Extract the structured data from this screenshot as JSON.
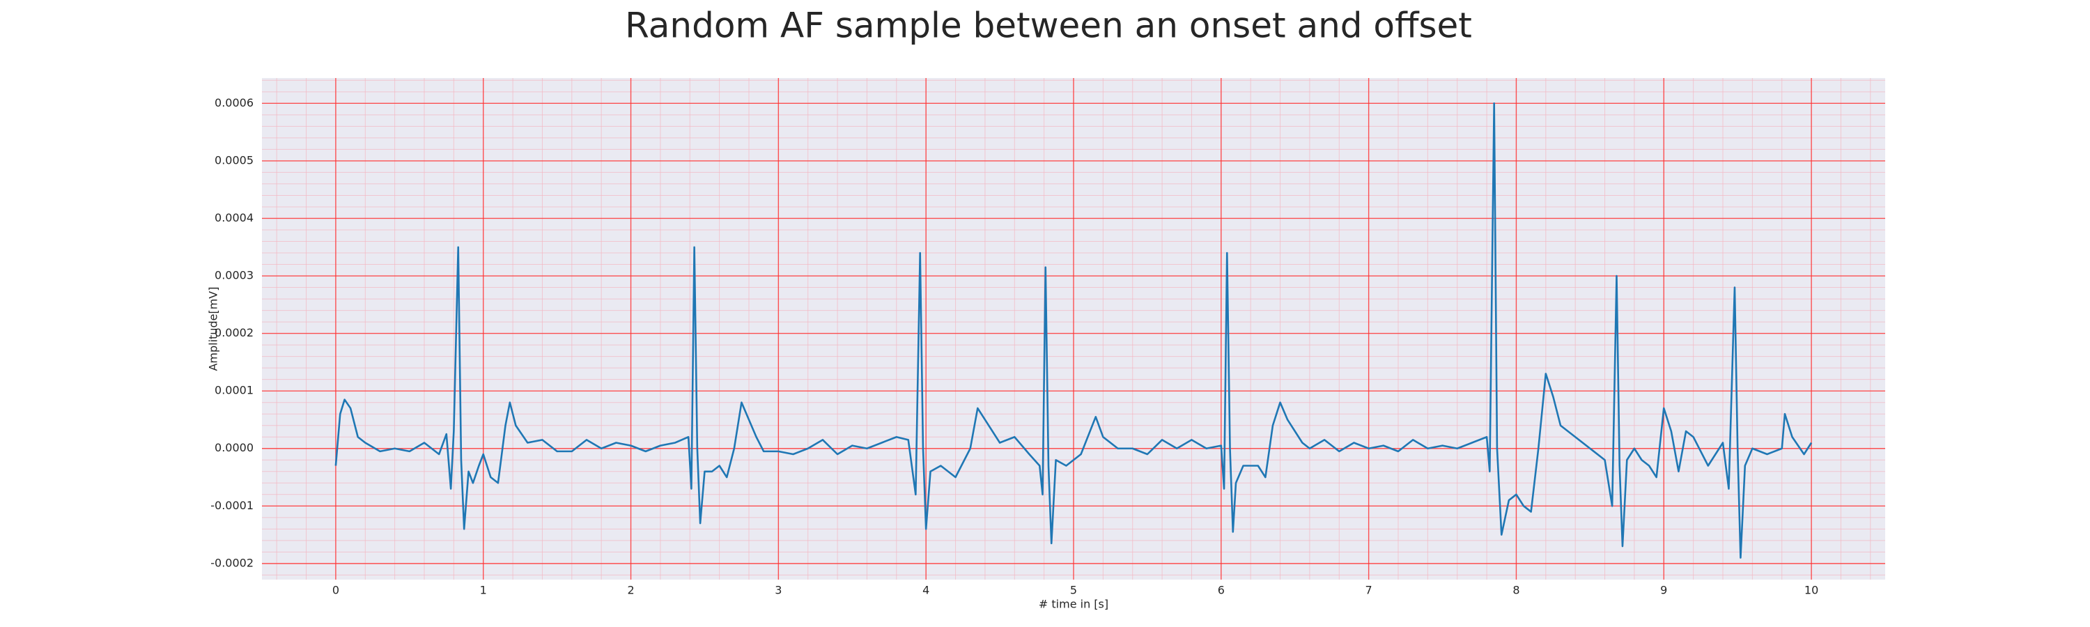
{
  "chart_data": {
    "type": "line",
    "title": "Random AF sample between an onset and offset",
    "xlabel": "# time in [s]",
    "ylabel": "Amplitude[mV]",
    "color": "#1f77b4",
    "grid": true,
    "minor_grid": true,
    "xlim": [
      -0.5,
      10.5
    ],
    "ylim": [
      -0.000228,
      0.000644
    ],
    "xticks": [
      0,
      1,
      2,
      3,
      4,
      5,
      6,
      7,
      8,
      9,
      10
    ],
    "yticks": [
      {
        "value": -0.0002,
        "label": "-0.0002"
      },
      {
        "value": -0.0001,
        "label": "-0.0001"
      },
      {
        "value": 0,
        "label": "0.0000"
      },
      {
        "value": 0.0001,
        "label": "0.0001"
      },
      {
        "value": 0.0002,
        "label": "0.0002"
      },
      {
        "value": 0.0003,
        "label": "0.0003"
      },
      {
        "value": 0.0004,
        "label": "0.0004"
      },
      {
        "value": 0.0005,
        "label": "0.0005"
      },
      {
        "value": 0.0006,
        "label": "0.0006"
      }
    ],
    "x": [
      0,
      0.03,
      0.06,
      0.1,
      0.15,
      0.2,
      0.3,
      0.4,
      0.5,
      0.6,
      0.7,
      0.75,
      0.78,
      0.8,
      0.83,
      0.85,
      0.87,
      0.9,
      0.93,
      0.97,
      1.0,
      1.05,
      1.1,
      1.15,
      1.18,
      1.22,
      1.3,
      1.4,
      1.5,
      1.6,
      1.7,
      1.8,
      1.9,
      2.0,
      2.1,
      2.2,
      2.3,
      2.39,
      2.41,
      2.43,
      2.45,
      2.47,
      2.5,
      2.55,
      2.6,
      2.65,
      2.7,
      2.75,
      2.8,
      2.85,
      2.9,
      3.0,
      3.1,
      3.2,
      3.3,
      3.4,
      3.5,
      3.6,
      3.7,
      3.8,
      3.88,
      3.93,
      3.96,
      3.98,
      4.0,
      4.03,
      4.1,
      4.2,
      4.3,
      4.35,
      4.4,
      4.5,
      4.6,
      4.7,
      4.77,
      4.79,
      4.81,
      4.83,
      4.85,
      4.88,
      4.95,
      5.05,
      5.15,
      5.2,
      5.3,
      5.4,
      5.5,
      5.6,
      5.7,
      5.8,
      5.9,
      6.0,
      6.02,
      6.04,
      6.06,
      6.08,
      6.1,
      6.15,
      6.25,
      6.3,
      6.35,
      6.4,
      6.45,
      6.55,
      6.6,
      6.7,
      6.8,
      6.9,
      7.0,
      7.1,
      7.2,
      7.3,
      7.4,
      7.5,
      7.6,
      7.7,
      7.8,
      7.82,
      7.85,
      7.87,
      7.9,
      7.95,
      8.0,
      8.05,
      8.1,
      8.15,
      8.2,
      8.25,
      8.3,
      8.4,
      8.5,
      8.6,
      8.65,
      8.68,
      8.7,
      8.72,
      8.75,
      8.8,
      8.85,
      8.9,
      8.95,
      9.0,
      9.05,
      9.1,
      9.15,
      9.2,
      9.3,
      9.4,
      9.44,
      9.48,
      9.5,
      9.52,
      9.55,
      9.6,
      9.7,
      9.8,
      9.82,
      9.87,
      9.95,
      10.0
    ],
    "values": [
      -3e-05,
      6e-05,
      8.5e-05,
      7e-05,
      2e-05,
      1e-05,
      -5e-06,
      0,
      -5e-06,
      1e-05,
      -1e-05,
      2.5e-05,
      -7e-05,
      3e-05,
      0.00035,
      -2e-05,
      -0.00014,
      -4e-05,
      -6e-05,
      -3e-05,
      -1e-05,
      -5e-05,
      -6e-05,
      4e-05,
      8e-05,
      4e-05,
      1e-05,
      1.5e-05,
      -5e-06,
      -5e-06,
      1.5e-05,
      0,
      1e-05,
      5e-06,
      -5e-06,
      5e-06,
      1e-05,
      2e-05,
      -7e-05,
      0.00035,
      0,
      -0.00013,
      -4e-05,
      -4e-05,
      -3e-05,
      -5e-05,
      0,
      8e-05,
      5e-05,
      2e-05,
      -5e-06,
      -5e-06,
      -1e-05,
      0,
      1.5e-05,
      -1e-05,
      5e-06,
      0,
      1e-05,
      2e-05,
      1.5e-05,
      -8e-05,
      0.00034,
      0,
      -0.00014,
      -4e-05,
      -3e-05,
      -5e-05,
      0,
      7e-05,
      5e-05,
      1e-05,
      2e-05,
      -1e-05,
      -3e-05,
      -8e-05,
      0.000315,
      -3e-05,
      -0.000165,
      -2e-05,
      -3e-05,
      -1e-05,
      5.5e-05,
      2e-05,
      0,
      0,
      -1e-05,
      1.5e-05,
      0,
      1.5e-05,
      0,
      5e-06,
      -7e-05,
      0.00034,
      0,
      -0.000145,
      -6e-05,
      -3e-05,
      -3e-05,
      -5e-05,
      4e-05,
      8e-05,
      5e-05,
      1e-05,
      0,
      1.5e-05,
      -5e-06,
      1e-05,
      0,
      5e-06,
      -5e-06,
      1.5e-05,
      0,
      5e-06,
      0,
      1e-05,
      2e-05,
      -4e-05,
      0.0006,
      0,
      -0.00015,
      -9e-05,
      -8e-05,
      -0.0001,
      -0.00011,
      0,
      0.00013,
      9e-05,
      4e-05,
      2e-05,
      0,
      -2e-05,
      -0.0001,
      0.0003,
      -3e-05,
      -0.00017,
      -2e-05,
      0,
      -2e-05,
      -3e-05,
      -5e-05,
      7e-05,
      3e-05,
      -4e-05,
      3e-05,
      2e-05,
      -3e-05,
      1e-05,
      -7e-05,
      0.00028,
      0,
      -0.00019,
      -3e-05,
      0,
      -1e-05,
      0,
      6e-05,
      2e-05,
      -1e-05,
      1e-05
    ]
  }
}
